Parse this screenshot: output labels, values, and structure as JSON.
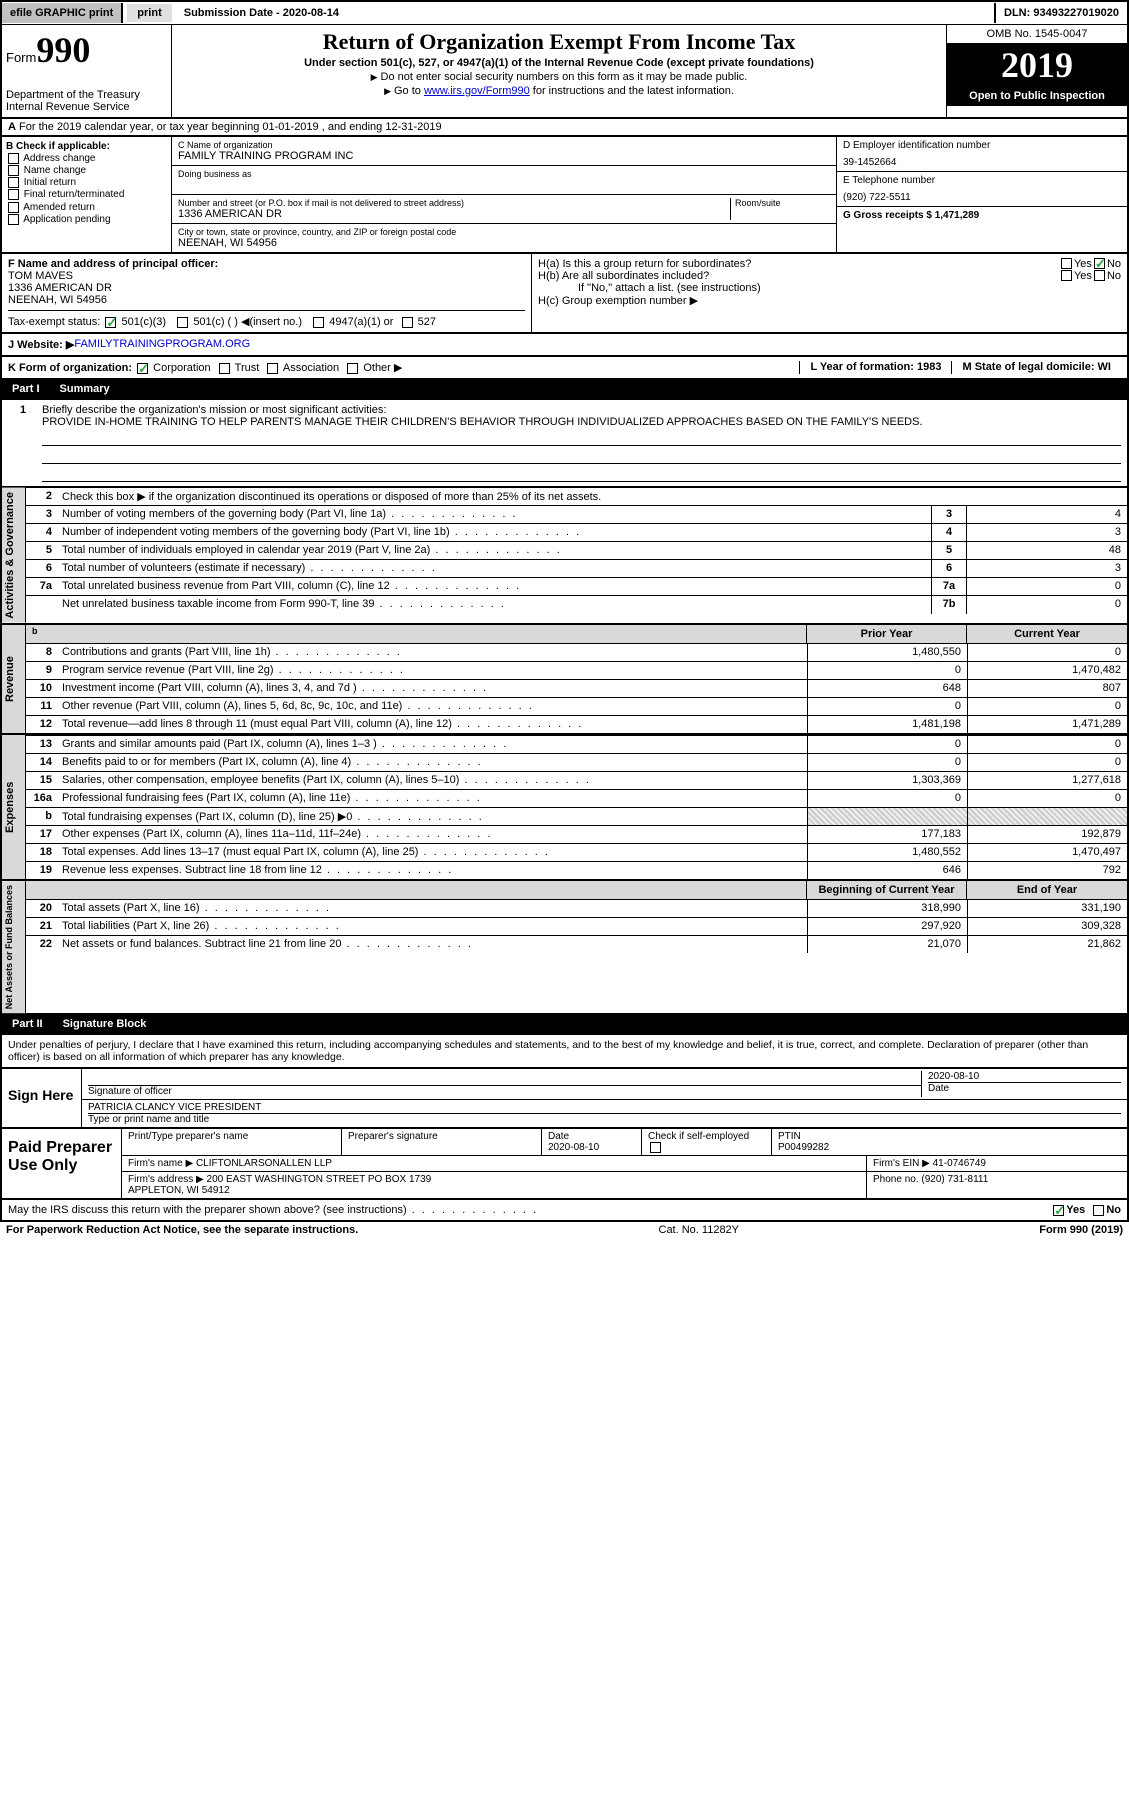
{
  "topbar": {
    "efile": "efile GRAPHIC print",
    "submission_label": "Submission Date - 2020-08-14",
    "dln": "DLN: 93493227019020"
  },
  "header": {
    "form_prefix": "Form",
    "form_number": "990",
    "dept": "Department of the Treasury",
    "irs": "Internal Revenue Service",
    "title": "Return of Organization Exempt From Income Tax",
    "subtitle": "Under section 501(c), 527, or 4947(a)(1) of the Internal Revenue Code (except private foundations)",
    "note1": "Do not enter social security numbers on this form as it may be made public.",
    "note2_prefix": "Go to ",
    "note2_link": "www.irs.gov/Form990",
    "note2_suffix": " for instructions and the latest information.",
    "omb": "OMB No. 1545-0047",
    "year": "2019",
    "open_public": "Open to Public Inspection"
  },
  "row_a": "For the 2019 calendar year, or tax year beginning 01-01-2019   , and ending 12-31-2019",
  "section_b": {
    "label": "B Check if applicable:",
    "items": [
      "Address change",
      "Name change",
      "Initial return",
      "Final return/terminated",
      "Amended return",
      "Application pending"
    ]
  },
  "section_c": {
    "name_lbl": "C Name of organization",
    "name": "FAMILY TRAINING PROGRAM INC",
    "dba_lbl": "Doing business as",
    "street_lbl": "Number and street (or P.O. box if mail is not delivered to street address)",
    "room_lbl": "Room/suite",
    "street": "1336 AMERICAN DR",
    "city_lbl": "City or town, state or province, country, and ZIP or foreign postal code",
    "city": "NEENAH, WI  54956"
  },
  "section_d": {
    "ein_lbl": "D Employer identification number",
    "ein": "39-1452664",
    "phone_lbl": "E Telephone number",
    "phone": "(920) 722-5511",
    "gross_lbl": "G Gross receipts $ 1,471,289"
  },
  "section_f": {
    "lbl": "F  Name and address of principal officer:",
    "name": "TOM MAVES",
    "addr1": "1336 AMERICAN DR",
    "addr2": "NEENAH, WI  54956",
    "tax_exempt": "Tax-exempt status:",
    "status_501c3": "501(c)(3)",
    "status_501c": "501(c) (  ) ◀(insert no.)",
    "status_4947": "4947(a)(1) or",
    "status_527": "527"
  },
  "section_h": {
    "ha": "H(a)  Is this a group return for subordinates?",
    "hb": "H(b)  Are all subordinates included?",
    "hb_note": "If \"No,\" attach a list. (see instructions)",
    "hc": "H(c)  Group exemption number ▶",
    "yes": "Yes",
    "no": "No"
  },
  "row_j": {
    "lbl": "J   Website: ▶",
    "val": "  FAMILYTRAININGPROGRAM.ORG"
  },
  "row_k": {
    "lbl": "K Form of organization:",
    "corp": "Corporation",
    "trust": "Trust",
    "assoc": "Association",
    "other": "Other ▶",
    "l": "L Year of formation: 1983",
    "m": "M State of legal domicile: WI"
  },
  "part1": {
    "pn": "Part I",
    "pt": "Summary"
  },
  "mission": {
    "label": "Briefly describe the organization's mission or most significant activities:",
    "text": "PROVIDE IN-HOME TRAINING TO HELP PARENTS MANAGE THEIR CHILDREN'S BEHAVIOR THROUGH INDIVIDUALIZED APPROACHES BASED ON THE FAMILY'S NEEDS."
  },
  "ag": {
    "sidelabel": "Activities & Governance",
    "r2": "Check this box ▶        if the organization discontinued its operations or disposed of more than 25% of its net assets.",
    "rows": [
      {
        "n": "3",
        "d": "Number of voting members of the governing body (Part VI, line 1a)",
        "bn": "3",
        "v": "4"
      },
      {
        "n": "4",
        "d": "Number of independent voting members of the governing body (Part VI, line 1b)",
        "bn": "4",
        "v": "3"
      },
      {
        "n": "5",
        "d": "Total number of individuals employed in calendar year 2019 (Part V, line 2a)",
        "bn": "5",
        "v": "48"
      },
      {
        "n": "6",
        "d": "Total number of volunteers (estimate if necessary)",
        "bn": "6",
        "v": "3"
      },
      {
        "n": "7a",
        "d": "Total unrelated business revenue from Part VIII, column (C), line 12",
        "bn": "7a",
        "v": "0"
      },
      {
        "n": "",
        "d": "Net unrelated business taxable income from Form 990-T, line 39",
        "bn": "7b",
        "v": "0"
      }
    ]
  },
  "rev": {
    "py_hdr": "Prior Year",
    "cy_hdr": "Current Year",
    "sidelabel": "Revenue",
    "rows": [
      {
        "n": "8",
        "d": "Contributions and grants (Part VIII, line 1h)",
        "py": "1,480,550",
        "cy": "0"
      },
      {
        "n": "9",
        "d": "Program service revenue (Part VIII, line 2g)",
        "py": "0",
        "cy": "1,470,482"
      },
      {
        "n": "10",
        "d": "Investment income (Part VIII, column (A), lines 3, 4, and 7d )",
        "py": "648",
        "cy": "807"
      },
      {
        "n": "11",
        "d": "Other revenue (Part VIII, column (A), lines 5, 6d, 8c, 9c, 10c, and 11e)",
        "py": "0",
        "cy": "0"
      },
      {
        "n": "12",
        "d": "Total revenue—add lines 8 through 11 (must equal Part VIII, column (A), line 12)",
        "py": "1,481,198",
        "cy": "1,471,289"
      }
    ]
  },
  "exp": {
    "sidelabel": "Expenses",
    "rows": [
      {
        "n": "13",
        "d": "Grants and similar amounts paid (Part IX, column (A), lines 1–3 )",
        "py": "0",
        "cy": "0"
      },
      {
        "n": "14",
        "d": "Benefits paid to or for members (Part IX, column (A), line 4)",
        "py": "0",
        "cy": "0"
      },
      {
        "n": "15",
        "d": "Salaries, other compensation, employee benefits (Part IX, column (A), lines 5–10)",
        "py": "1,303,369",
        "cy": "1,277,618"
      },
      {
        "n": "16a",
        "d": "Professional fundraising fees (Part IX, column (A), line 11e)",
        "py": "0",
        "cy": "0"
      },
      {
        "n": "b",
        "d": "Total fundraising expenses (Part IX, column (D), line 25)  ▶0",
        "py": "",
        "cy": "",
        "hatched": true
      },
      {
        "n": "17",
        "d": "Other expenses (Part IX, column (A), lines 11a–11d, 11f–24e)",
        "py": "177,183",
        "cy": "192,879"
      },
      {
        "n": "18",
        "d": "Total expenses. Add lines 13–17 (must equal Part IX, column (A), line 25)",
        "py": "1,480,552",
        "cy": "1,470,497"
      },
      {
        "n": "19",
        "d": "Revenue less expenses. Subtract line 18 from line 12",
        "py": "646",
        "cy": "792"
      }
    ]
  },
  "na": {
    "sidelabel": "Net Assets or Fund Balances",
    "py_hdr": "Beginning of Current Year",
    "cy_hdr": "End of Year",
    "rows": [
      {
        "n": "20",
        "d": "Total assets (Part X, line 16)",
        "py": "318,990",
        "cy": "331,190"
      },
      {
        "n": "21",
        "d": "Total liabilities (Part X, line 26)",
        "py": "297,920",
        "cy": "309,328"
      },
      {
        "n": "22",
        "d": "Net assets or fund balances. Subtract line 21 from line 20",
        "py": "21,070",
        "cy": "21,862"
      }
    ]
  },
  "part2": {
    "pn": "Part II",
    "pt": "Signature Block"
  },
  "sig_text": "Under penalties of perjury, I declare that I have examined this return, including accompanying schedules and statements, and to the best of my knowledge and belief, it is true, correct, and complete. Declaration of preparer (other than officer) is based on all information of which preparer has any knowledge.",
  "sign": {
    "left": "Sign Here",
    "r1_sig": "Signature of officer",
    "r1_date": "2020-08-10",
    "r1_date_lbl": "Date",
    "r2_name": "PATRICIA CLANCY  VICE PRESIDENT",
    "r2_lbl": "Type or print name and title"
  },
  "prep": {
    "left": "Paid Preparer Use Only",
    "h1": "Print/Type preparer's name",
    "h2": "Preparer's signature",
    "h3": "Date",
    "h3v": "2020-08-10",
    "h4": "Check         if self-employed",
    "h5": "PTIN",
    "h5v": "P00499282",
    "firm_lbl": "Firm's name    ▶",
    "firm": "CLIFTONLARSONALLEN LLP",
    "ein_lbl": "Firm's EIN ▶",
    "ein": "41-0746749",
    "addr_lbl": "Firm's address ▶",
    "addr": "200 EAST WASHINGTON STREET PO BOX 1739\nAPPLETON, WI  54912",
    "phone_lbl": "Phone no.",
    "phone": "(920) 731-8111"
  },
  "footer": {
    "q": "May the IRS discuss this return with the preparer shown above? (see instructions)",
    "yes": "Yes",
    "no": "No"
  },
  "bottom": {
    "left": "For Paperwork Reduction Act Notice, see the separate instructions.",
    "mid": "Cat. No. 11282Y",
    "right": "Form 990 (2019)"
  }
}
